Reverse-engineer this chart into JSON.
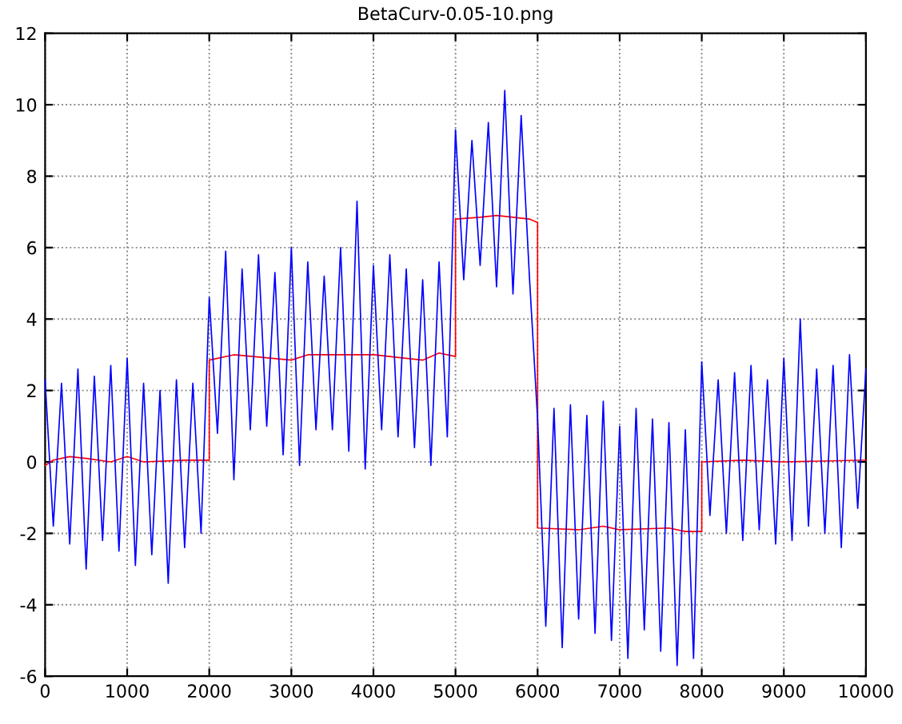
{
  "chart_data": {
    "type": "line",
    "title": "BetaCurv-0.05-10.png",
    "xlim": [
      0,
      10000
    ],
    "ylim": [
      -6,
      12
    ],
    "xticks": [
      0,
      1000,
      2000,
      3000,
      4000,
      5000,
      6000,
      7000,
      8000,
      9000,
      10000
    ],
    "yticks": [
      -6,
      -4,
      -2,
      0,
      2,
      4,
      6,
      8,
      10,
      12
    ],
    "grid": true,
    "marker": "none",
    "line_style": "solid",
    "series": [
      {
        "color": "#0000ff",
        "x": [
          0,
          100,
          200,
          300,
          400,
          500,
          600,
          700,
          800,
          900,
          1000,
          1100,
          1200,
          1300,
          1400,
          1500,
          1600,
          1700,
          1800,
          1900,
          2000,
          2100,
          2200,
          2300,
          2400,
          2500,
          2600,
          2700,
          2800,
          2900,
          3000,
          3100,
          3200,
          3300,
          3400,
          3500,
          3600,
          3700,
          3800,
          3900,
          4000,
          4100,
          4200,
          4300,
          4400,
          4500,
          4600,
          4700,
          4800,
          4900,
          5000,
          5100,
          5200,
          5300,
          5400,
          5500,
          5600,
          5700,
          5800,
          5900,
          6000,
          6100,
          6200,
          6300,
          6400,
          6500,
          6600,
          6700,
          6800,
          6900,
          7000,
          7100,
          7200,
          7300,
          7400,
          7500,
          7600,
          7700,
          7800,
          7900,
          8000,
          8100,
          8200,
          8300,
          8400,
          8500,
          8600,
          8700,
          8800,
          8900,
          9000,
          9100,
          9200,
          9300,
          9400,
          9500,
          9600,
          9700,
          9800,
          9900,
          10000
        ],
        "values": [
          2.3,
          -1.8,
          2.2,
          -2.3,
          2.6,
          -3.0,
          2.4,
          -2.2,
          2.7,
          -2.5,
          2.9,
          -2.9,
          2.2,
          -2.6,
          2.0,
          -3.4,
          2.3,
          -2.4,
          2.2,
          -2.0,
          4.6,
          0.8,
          5.9,
          -0.5,
          5.4,
          0.9,
          5.8,
          1.0,
          5.3,
          0.2,
          6.0,
          -0.1,
          5.6,
          0.9,
          5.2,
          0.9,
          6.0,
          0.3,
          7.3,
          -0.2,
          5.5,
          0.9,
          5.8,
          0.7,
          5.4,
          0.4,
          5.1,
          -0.1,
          5.6,
          0.7,
          9.3,
          5.1,
          9.0,
          5.5,
          9.5,
          4.9,
          10.4,
          4.7,
          9.7,
          5.2,
          1.2,
          -4.6,
          1.5,
          -5.2,
          1.6,
          -4.4,
          1.3,
          -4.8,
          1.7,
          -5.0,
          1.0,
          -5.5,
          1.5,
          -4.7,
          1.2,
          -5.3,
          1.1,
          -5.7,
          0.9,
          -5.5,
          2.8,
          -1.5,
          2.3,
          -2.0,
          2.5,
          -2.2,
          2.7,
          -1.9,
          2.3,
          -2.3,
          2.9,
          -2.2,
          4.0,
          -1.8,
          2.6,
          -2.0,
          2.7,
          -2.4,
          3.0,
          -1.3,
          2.6
        ]
      },
      {
        "color": "#ff0000",
        "x": [
          0,
          100,
          300,
          500,
          800,
          1000,
          1200,
          1700,
          2000,
          2000,
          2300,
          3000,
          3200,
          4000,
          4600,
          4800,
          5000,
          5000,
          5300,
          5500,
          5900,
          6000,
          6000,
          6500,
          6800,
          7000,
          7600,
          7800,
          8000,
          8000,
          8500,
          9000,
          10000
        ],
        "values": [
          -0.1,
          0.05,
          0.15,
          0.1,
          0.0,
          0.15,
          0.0,
          0.05,
          0.05,
          2.85,
          3.0,
          2.85,
          3.0,
          3.0,
          2.85,
          3.05,
          2.95,
          6.8,
          6.85,
          6.9,
          6.8,
          6.7,
          -1.85,
          -1.9,
          -1.8,
          -1.9,
          -1.85,
          -1.95,
          -1.95,
          0.0,
          0.05,
          0.0,
          0.05
        ]
      }
    ]
  }
}
